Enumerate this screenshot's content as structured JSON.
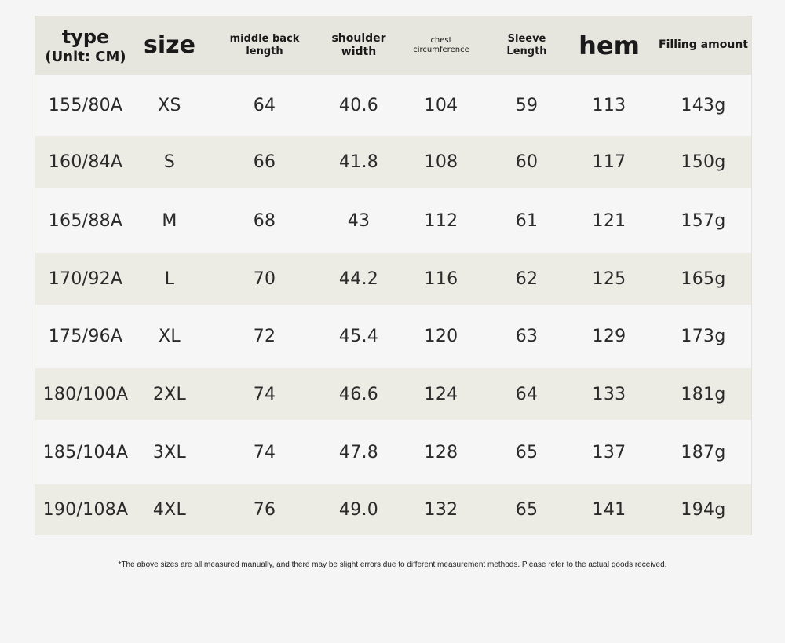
{
  "header": {
    "type_label": "type",
    "type_unit": "(Unit: CM)",
    "size_label": "size",
    "middle_back_line1": "middle back",
    "middle_back_line2": "length",
    "shoulder_line1": "shoulder",
    "shoulder_line2": "width",
    "chest_line1": "chest",
    "chest_line2": "circumference",
    "sleeve_line1": "Sleeve",
    "sleeve_line2": "Length",
    "hem_label": "hem",
    "filling_label": "Filling amount"
  },
  "rows": [
    [
      "155/80A",
      "XS",
      "64",
      "40.6",
      "104",
      "59",
      "113",
      "143g"
    ],
    [
      "160/84A",
      "S",
      "66",
      "41.8",
      "108",
      "60",
      "117",
      "150g"
    ],
    [
      "165/88A",
      "M",
      "68",
      "43",
      "112",
      "61",
      "121",
      "157g"
    ],
    [
      "170/92A",
      "L",
      "70",
      "44.2",
      "116",
      "62",
      "125",
      "165g"
    ],
    [
      "175/96A",
      "XL",
      "72",
      "45.4",
      "120",
      "63",
      "129",
      "173g"
    ],
    [
      "180/100A",
      "2XL",
      "74",
      "46.6",
      "124",
      "64",
      "133",
      "181g"
    ],
    [
      "185/104A",
      "3XL",
      "74",
      "47.8",
      "128",
      "65",
      "137",
      "187g"
    ],
    [
      "190/108A",
      "4XL",
      "76",
      "49.0",
      "132",
      "65",
      "141",
      "194g"
    ]
  ],
  "footnote": "*The above sizes are all measured manually, and there may be slight errors due to different measurement methods. Please refer to the actual goods received.",
  "colors": {
    "header_bg": "#e7e6de",
    "row_light": "#f6f6f6",
    "row_dark": "#ecebe4",
    "page_bg": "#f5f5f5"
  }
}
